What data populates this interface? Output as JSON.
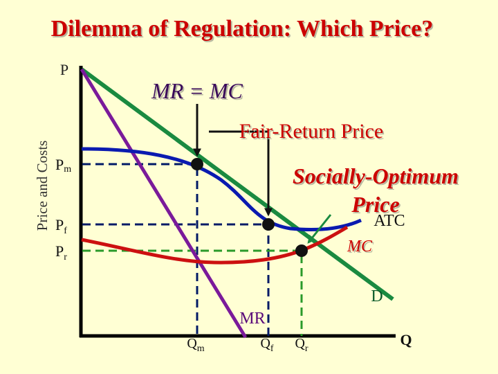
{
  "title": "Dilemma of Regulation: Which Price?",
  "axes": {
    "y_label": "Price and Costs",
    "y_symbol": "P",
    "x_symbol": "Q"
  },
  "price_levels": [
    {
      "main": "P",
      "sub": "m"
    },
    {
      "main": "P",
      "sub": "f"
    },
    {
      "main": "P",
      "sub": "r"
    }
  ],
  "quantity_levels": [
    {
      "main": "Q",
      "sub": "m"
    },
    {
      "main": "Q",
      "sub": "f"
    },
    {
      "main": "Q",
      "sub": "r"
    }
  ],
  "curves": {
    "atc": "ATC",
    "mc": "MC",
    "demand": "D",
    "mr": "MR"
  },
  "annotations": {
    "mr_mc": "MR = MC",
    "fair_return": "Fair-Return Price",
    "social_1": "Socially-Optimum",
    "social_2": "Price"
  }
}
